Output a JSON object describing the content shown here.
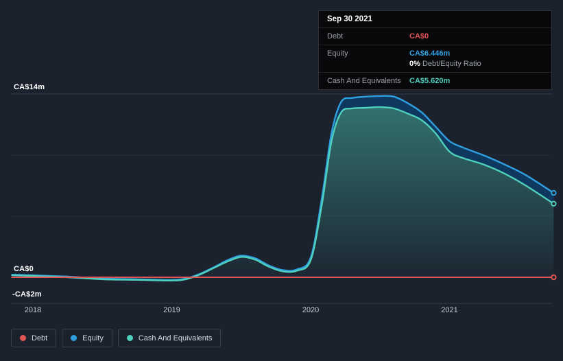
{
  "colors": {
    "debt": "#e25555",
    "equity": "#2f9fe0",
    "cash": "#4ed0bd",
    "band": "#0f3a61",
    "background": "#1b222e"
  },
  "tooltip": {
    "date": "Sep 30 2021",
    "debt": {
      "label": "Debt",
      "value": "CA$0"
    },
    "equity": {
      "label": "Equity",
      "value": "CA$6.446m"
    },
    "ratio": {
      "value": "0%",
      "label": "Debt/Equity Ratio"
    },
    "cash": {
      "label": "Cash And Equivalents",
      "value": "CA$5.620m"
    }
  },
  "axis": {
    "y_labels": [
      "CA$14m",
      "CA$0",
      "-CA$2m"
    ],
    "x_labels": [
      "2018",
      "2019",
      "2020",
      "2021"
    ]
  },
  "legend": {
    "items": [
      {
        "label": "Debt",
        "key": "debt"
      },
      {
        "label": "Equity",
        "key": "equity"
      },
      {
        "label": "Cash And Equivalents",
        "key": "cash"
      }
    ]
  },
  "chart_data": {
    "type": "area",
    "x_years": [
      2017.85,
      2018.0,
      2018.25,
      2018.5,
      2018.75,
      2019.0,
      2019.1,
      2019.2,
      2019.3,
      2019.4,
      2019.5,
      2019.6,
      2019.7,
      2019.8,
      2019.9,
      2020.0,
      2020.08,
      2020.15,
      2020.22,
      2020.3,
      2020.4,
      2020.5,
      2020.6,
      2020.7,
      2020.8,
      2020.9,
      2021.0,
      2021.1,
      2021.25,
      2021.4,
      2021.55,
      2021.75
    ],
    "series": [
      {
        "name": "Equity",
        "color_key": "equity",
        "values": [
          0.2,
          0.15,
          0.05,
          -0.1,
          -0.15,
          -0.2,
          -0.1,
          0.25,
          0.75,
          1.3,
          1.65,
          1.45,
          0.9,
          0.55,
          0.6,
          1.5,
          6.0,
          11.0,
          13.4,
          13.7,
          13.8,
          13.85,
          13.8,
          13.3,
          12.6,
          11.5,
          10.4,
          9.9,
          9.3,
          8.6,
          7.8,
          6.446
        ]
      },
      {
        "name": "Cash And Equivalents",
        "color_key": "cash",
        "values": [
          0.15,
          0.1,
          0.0,
          -0.15,
          -0.2,
          -0.25,
          -0.15,
          0.2,
          0.7,
          1.2,
          1.55,
          1.35,
          0.8,
          0.45,
          0.5,
          1.3,
          5.5,
          10.4,
          12.6,
          12.9,
          12.95,
          13.0,
          12.9,
          12.5,
          12.0,
          11.0,
          9.6,
          9.1,
          8.6,
          7.9,
          7.0,
          5.62
        ]
      },
      {
        "name": "Debt",
        "color_key": "debt",
        "values": [
          0,
          0,
          0,
          0,
          0,
          0,
          0,
          0,
          0,
          0,
          0,
          0,
          0,
          0,
          0,
          0,
          0,
          0,
          0,
          0,
          0,
          0,
          0,
          0,
          0,
          0,
          0,
          0,
          0,
          0,
          0,
          0
        ]
      }
    ],
    "ylim": [
      -2,
      14
    ],
    "x_ticks": [
      2018,
      2019,
      2020,
      2021
    ],
    "grid_values": [
      14,
      9.33,
      4.67,
      0,
      -2
    ],
    "legend_position": "bottom-left"
  }
}
